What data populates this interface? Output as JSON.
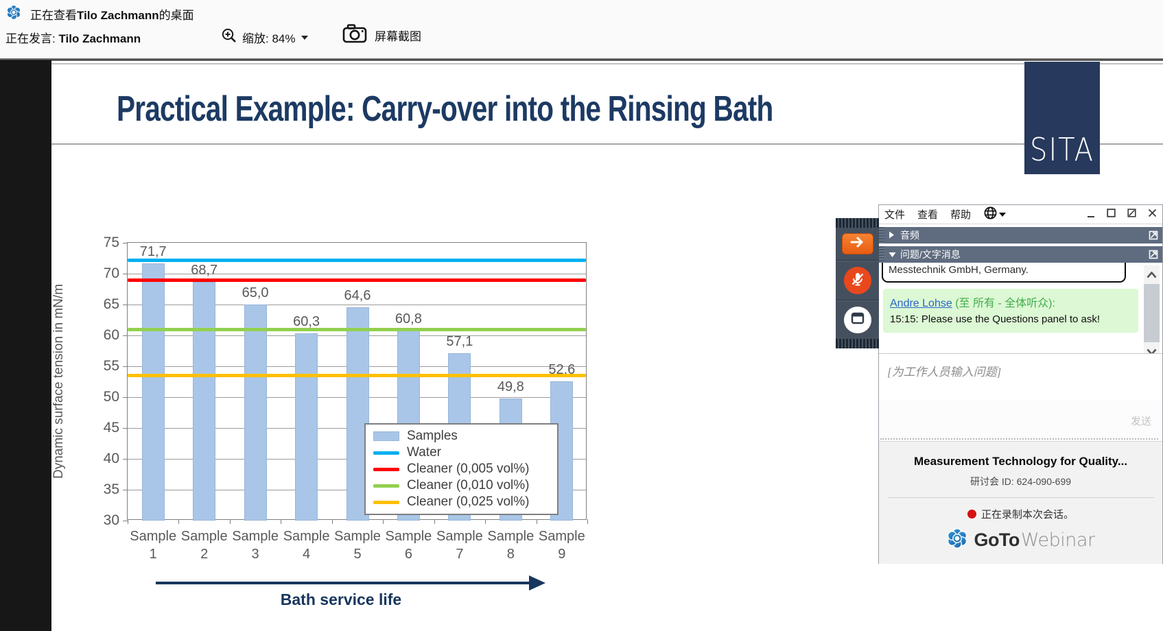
{
  "viewer_bar": {
    "viewing_prefix": "正在查看",
    "presenter_name": "Tilo Zachmann",
    "viewing_suffix": "的桌面",
    "speaking_prefix": "正在发言: ",
    "speaker_name": "Tilo Zachmann",
    "zoom_label": "缩放: 84%",
    "screenshot_label": "屏幕截图"
  },
  "slide": {
    "title": "Practical Example: Carry-over into the Rinsing Bath",
    "logo_text": "SITA",
    "arrow_label": "Bath service life"
  },
  "chart_data": {
    "type": "bar",
    "categories": [
      "Sample 1",
      "Sample 2",
      "Sample 3",
      "Sample 4",
      "Sample 5",
      "Sample 6",
      "Sample 7",
      "Sample 8",
      "Sample 9"
    ],
    "values": [
      71.7,
      68.7,
      65.0,
      60.3,
      64.6,
      60.8,
      57.1,
      49.8,
      52.6
    ],
    "value_labels": [
      "71,7",
      "68,7",
      "65,0",
      "60,3",
      "64,6",
      "60,8",
      "57,1",
      "49,8",
      "52,6"
    ],
    "ylabel": "Dynamic surface tension in mN/m",
    "xlabel": "Bath service life",
    "ylim": [
      30,
      75
    ],
    "ytick_step": 5,
    "grid": true,
    "bar_color": "#a9c6e8",
    "reference_lines": [
      {
        "label": "Water",
        "value": 72.2,
        "color": "#00b0f0"
      },
      {
        "label": "Cleaner (0,005 vol%)",
        "value": 69.0,
        "color": "#ff0000"
      },
      {
        "label": "Cleaner (0,010 vol%)",
        "value": 61.0,
        "color": "#92d050"
      },
      {
        "label": "Cleaner (0,025 vol%)",
        "value": 53.5,
        "color": "#ffc000"
      }
    ],
    "legend": [
      "Samples",
      "Water",
      "Cleaner (0,005 vol%)",
      "Cleaner (0,010 vol%)",
      "Cleaner (0,025 vol%)"
    ],
    "legend_position": "inside lower right"
  },
  "panel": {
    "menu": [
      "文件",
      "查看",
      "帮助"
    ],
    "sections": [
      {
        "label": "音频"
      },
      {
        "label": "问题/文字消息"
      }
    ],
    "answer_preview": "Messtechnik GmbH, Germany.",
    "chat": {
      "author": "Andre Lohse",
      "audience": "(至 所有 - 全体听众):",
      "message": "15:15: Please use the Questions panel to ask!"
    },
    "input_placeholder": "[为工作人员输入问题]",
    "send_label": "发送",
    "webinar_title": "Measurement Technology for Quality...",
    "webinar_id": "研讨会 ID: 624-090-699",
    "recording_notice": "正在录制本次会话。",
    "brand_goto": "GoTo",
    "brand_webinar": "Webinar",
    "colors": {
      "header_bg": "#5f6c80",
      "chat_highlight": "#dcf8d4",
      "brand_blue": "#2377bd"
    }
  }
}
